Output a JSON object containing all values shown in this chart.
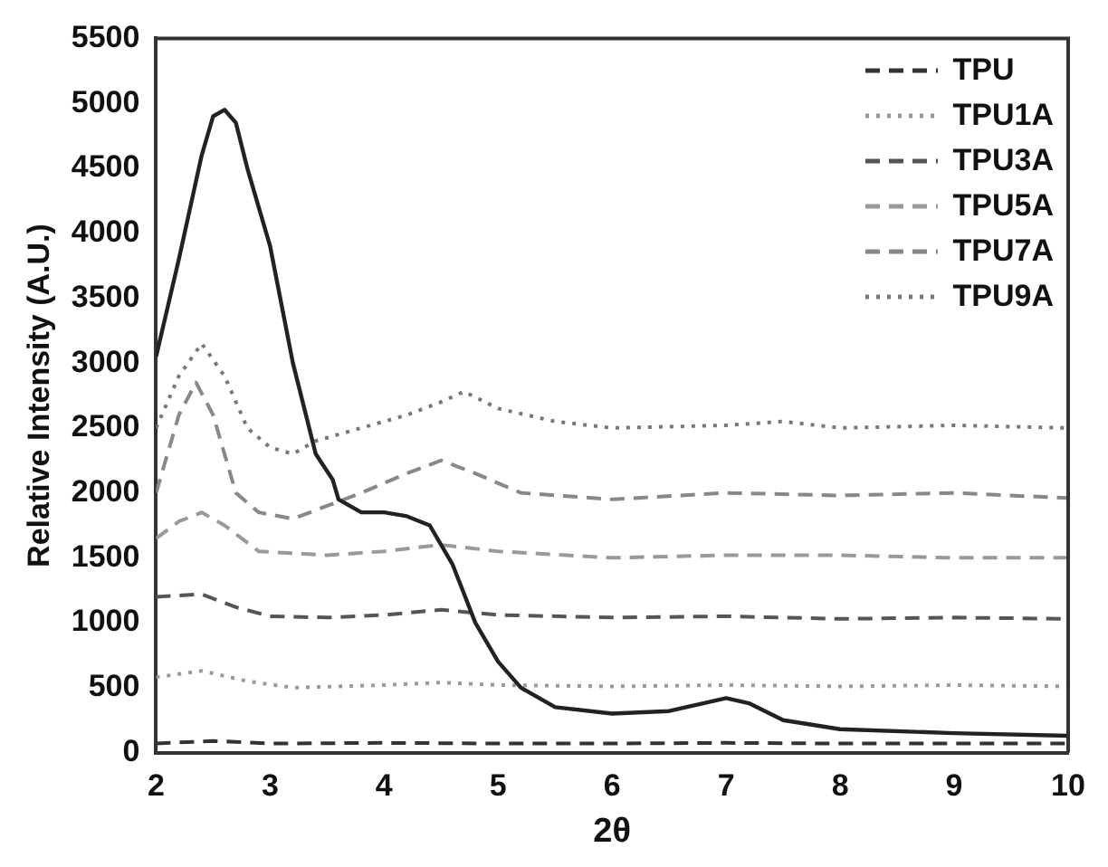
{
  "chart_data": {
    "type": "line",
    "xlabel": "2θ",
    "ylabel": "Relative Intensity (A.U.)",
    "xlim": [
      2,
      10
    ],
    "ylim": [
      0,
      5500
    ],
    "xticks": [
      2,
      3,
      4,
      5,
      6,
      7,
      8,
      9,
      10
    ],
    "yticks": [
      0,
      500,
      1000,
      1500,
      2000,
      2500,
      3000,
      3500,
      4000,
      4500,
      5000,
      5500
    ],
    "grid": false,
    "legend": "top right",
    "marker": "none",
    "series": [
      {
        "color": "#222222",
        "line_style": "solid",
        "x": [
          2.0,
          2.2,
          2.4,
          2.5,
          2.6,
          2.7,
          2.8,
          3.0,
          3.2,
          3.4,
          3.55,
          3.6,
          3.8,
          4.0,
          4.2,
          4.4,
          4.6,
          4.8,
          5.0,
          5.2,
          5.5,
          6.0,
          6.5,
          6.8,
          7.0,
          7.2,
          7.5,
          8.0,
          9.0,
          10.0
        ],
        "values": [
          3050,
          3800,
          4600,
          4900,
          4950,
          4850,
          4500,
          3900,
          3000,
          2300,
          2100,
          1950,
          1850,
          1850,
          1820,
          1750,
          1450,
          1000,
          700,
          500,
          350,
          300,
          320,
          380,
          420,
          380,
          250,
          180,
          150,
          130
        ]
      },
      {
        "name": "TPU",
        "color": "#333333",
        "line_style": "dashed",
        "x": [
          2,
          2.5,
          3,
          4,
          5,
          6,
          7,
          8,
          9,
          10
        ],
        "values": [
          70,
          90,
          70,
          75,
          70,
          70,
          75,
          70,
          70,
          70
        ]
      },
      {
        "name": "TPU1A",
        "color": "#999999",
        "line_style": "dotted",
        "x": [
          2.0,
          2.4,
          2.8,
          3.2,
          4.0,
          4.5,
          5.0,
          6,
          7,
          8,
          9,
          10
        ],
        "values": [
          580,
          630,
          550,
          500,
          520,
          540,
          520,
          510,
          520,
          510,
          520,
          510
        ]
      },
      {
        "name": "TPU3A",
        "color": "#555555",
        "line_style": "dashed",
        "x": [
          2.0,
          2.4,
          2.7,
          3.0,
          3.5,
          4.0,
          4.5,
          5.0,
          6,
          7,
          8,
          9,
          10
        ],
        "values": [
          1200,
          1220,
          1120,
          1050,
          1040,
          1060,
          1100,
          1060,
          1040,
          1050,
          1030,
          1040,
          1030
        ]
      },
      {
        "name": "TPU5A",
        "color": "#999999",
        "line_style": "dashed",
        "x": [
          2.0,
          2.2,
          2.4,
          2.6,
          2.9,
          3.5,
          4.0,
          4.5,
          5.0,
          6,
          7,
          8,
          9,
          10
        ],
        "values": [
          1650,
          1780,
          1850,
          1750,
          1550,
          1520,
          1550,
          1600,
          1550,
          1500,
          1520,
          1520,
          1500,
          1500
        ]
      },
      {
        "name": "TPU7A",
        "color": "#888888",
        "line_style": "dashed",
        "x": [
          2.0,
          2.2,
          2.35,
          2.5,
          2.7,
          2.9,
          3.2,
          3.5,
          3.8,
          4.2,
          4.5,
          4.8,
          5.2,
          6,
          7,
          8,
          9,
          10
        ],
        "values": [
          2000,
          2600,
          2850,
          2600,
          2000,
          1850,
          1800,
          1900,
          2000,
          2150,
          2250,
          2150,
          2000,
          1950,
          2000,
          1980,
          2000,
          1960
        ]
      },
      {
        "name": "TPU9A",
        "color": "#777777",
        "line_style": "dotted",
        "x": [
          2.0,
          2.2,
          2.4,
          2.6,
          2.8,
          3.0,
          3.2,
          3.4,
          3.8,
          4.2,
          4.5,
          4.7,
          5.0,
          5.5,
          6,
          7,
          7.5,
          8,
          9,
          10
        ],
        "values": [
          2500,
          2900,
          3150,
          2900,
          2500,
          2350,
          2300,
          2400,
          2500,
          2600,
          2700,
          2780,
          2650,
          2550,
          2500,
          2520,
          2550,
          2500,
          2520,
          2500
        ]
      }
    ]
  }
}
